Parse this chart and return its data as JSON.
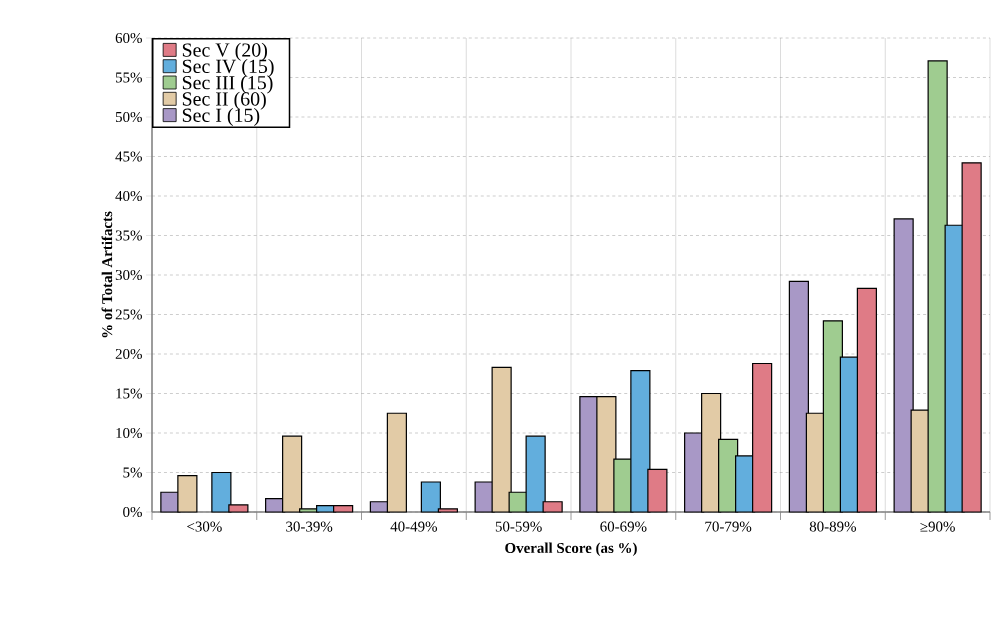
{
  "chart_data": {
    "type": "bar",
    "xlabel": "Overall Score (as %)",
    "ylabel": "% of  Total Artifacts",
    "categories": [
      "<30%",
      "30-39%",
      "40-49%",
      "50-59%",
      "60-69%",
      "70-79%",
      "80-89%",
      "≥90%"
    ],
    "series": [
      {
        "name": "Sec I (15)",
        "color": "#a898c6",
        "values": [
          2.5,
          1.7,
          1.3,
          3.8,
          14.6,
          10.0,
          29.2,
          37.1
        ]
      },
      {
        "name": "Sec II (60)",
        "color": "#e2cba6",
        "values": [
          4.6,
          9.6,
          12.5,
          18.3,
          14.6,
          15.0,
          12.5,
          12.9
        ]
      },
      {
        "name": "Sec III (15)",
        "color": "#9fcc90",
        "values": [
          null,
          0.4,
          null,
          2.5,
          6.7,
          9.2,
          24.2,
          57.1
        ]
      },
      {
        "name": "Sec IV (15)",
        "color": "#62aedd",
        "values": [
          5.0,
          0.8,
          3.8,
          9.6,
          17.9,
          7.1,
          19.6,
          36.3
        ]
      },
      {
        "name": "Sec V (20)",
        "color": "#df7b86",
        "values": [
          0.9,
          0.8,
          0.4,
          1.3,
          5.4,
          18.8,
          28.3,
          44.2
        ]
      }
    ],
    "ylim": [
      0,
      60
    ],
    "yticks": [
      {
        "value": 0,
        "label": "0%"
      },
      {
        "value": 5,
        "label": "5%"
      },
      {
        "value": 10,
        "label": "10%"
      },
      {
        "value": 15,
        "label": "15%"
      },
      {
        "value": 20,
        "label": "20%"
      },
      {
        "value": 25,
        "label": "25%"
      },
      {
        "value": 30,
        "label": "30%"
      },
      {
        "value": 35,
        "label": "35%"
      },
      {
        "value": 40,
        "label": "40%"
      },
      {
        "value": 45,
        "label": "45%"
      },
      {
        "value": 50,
        "label": "50%"
      },
      {
        "value": 55,
        "label": "55%"
      },
      {
        "value": 60,
        "label": "60%"
      }
    ],
    "grid": true,
    "legend": "top left"
  }
}
